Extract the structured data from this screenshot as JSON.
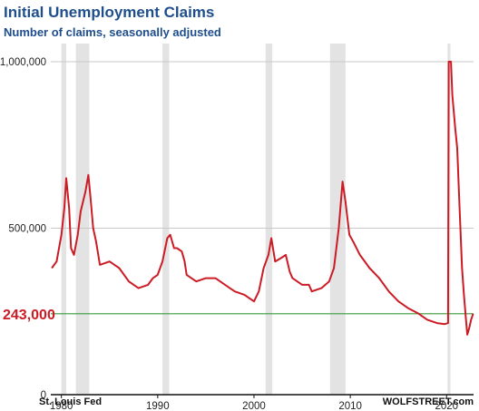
{
  "chart_data": {
    "type": "line",
    "title": "Initial Unemployment Claims",
    "subtitle": "Number of claims, seasonally adjusted",
    "source": "St. Louis Fed",
    "brand": "WOLFSTREET.com",
    "ylim": [
      0,
      1000000
    ],
    "xlim": [
      1978.9,
      2022.8
    ],
    "y_ticks": [
      {
        "value": 0,
        "label": "0"
      },
      {
        "value": 500000,
        "label": "500,000"
      },
      {
        "value": 1000000,
        "label": "1,000,000"
      }
    ],
    "x_ticks": [
      {
        "value": 1980,
        "label": "1980"
      },
      {
        "value": 1990,
        "label": "1990"
      },
      {
        "value": 2000,
        "label": "2000"
      },
      {
        "value": 2010,
        "label": "2010"
      },
      {
        "value": 2020,
        "label": "2020"
      }
    ],
    "reference_line": {
      "value": 243000,
      "label": "243,000",
      "color": "#3a9a3a"
    },
    "recessions": [
      {
        "start": 1980.0,
        "end": 1980.5
      },
      {
        "start": 1981.5,
        "end": 1982.9
      },
      {
        "start": 1990.5,
        "end": 1991.2
      },
      {
        "start": 2001.2,
        "end": 2001.9
      },
      {
        "start": 2007.9,
        "end": 2009.5
      },
      {
        "start": 2020.1,
        "end": 2020.4
      }
    ],
    "series": [
      {
        "color": "#cc1b24",
        "points": [
          [
            1979.0,
            380000
          ],
          [
            1979.5,
            400000
          ],
          [
            1980.0,
            480000
          ],
          [
            1980.3,
            560000
          ],
          [
            1980.5,
            650000
          ],
          [
            1980.8,
            560000
          ],
          [
            1981.0,
            440000
          ],
          [
            1981.3,
            420000
          ],
          [
            1981.7,
            480000
          ],
          [
            1982.0,
            550000
          ],
          [
            1982.5,
            610000
          ],
          [
            1982.8,
            660000
          ],
          [
            1983.0,
            600000
          ],
          [
            1983.3,
            500000
          ],
          [
            1983.6,
            460000
          ],
          [
            1984.0,
            390000
          ],
          [
            1985.0,
            400000
          ],
          [
            1986.0,
            380000
          ],
          [
            1987.0,
            340000
          ],
          [
            1988.0,
            320000
          ],
          [
            1989.0,
            330000
          ],
          [
            1989.5,
            350000
          ],
          [
            1990.0,
            360000
          ],
          [
            1990.5,
            400000
          ],
          [
            1991.0,
            470000
          ],
          [
            1991.3,
            480000
          ],
          [
            1991.7,
            440000
          ],
          [
            1992.0,
            440000
          ],
          [
            1992.5,
            430000
          ],
          [
            1992.8,
            400000
          ],
          [
            1993.0,
            360000
          ],
          [
            1994.0,
            340000
          ],
          [
            1995.0,
            350000
          ],
          [
            1996.0,
            350000
          ],
          [
            1997.0,
            330000
          ],
          [
            1998.0,
            310000
          ],
          [
            1999.0,
            300000
          ],
          [
            2000.0,
            280000
          ],
          [
            2000.5,
            310000
          ],
          [
            2001.0,
            380000
          ],
          [
            2001.5,
            420000
          ],
          [
            2001.8,
            470000
          ],
          [
            2002.2,
            400000
          ],
          [
            2002.8,
            410000
          ],
          [
            2003.3,
            420000
          ],
          [
            2003.7,
            370000
          ],
          [
            2004.0,
            350000
          ],
          [
            2005.0,
            330000
          ],
          [
            2005.7,
            330000
          ],
          [
            2006.0,
            310000
          ],
          [
            2007.0,
            320000
          ],
          [
            2007.8,
            340000
          ],
          [
            2008.3,
            380000
          ],
          [
            2008.8,
            500000
          ],
          [
            2009.2,
            640000
          ],
          [
            2009.5,
            580000
          ],
          [
            2009.9,
            480000
          ],
          [
            2010.3,
            460000
          ],
          [
            2011.0,
            420000
          ],
          [
            2012.0,
            380000
          ],
          [
            2013.0,
            350000
          ],
          [
            2014.0,
            310000
          ],
          [
            2015.0,
            280000
          ],
          [
            2016.0,
            260000
          ],
          [
            2017.0,
            245000
          ],
          [
            2018.0,
            225000
          ],
          [
            2019.0,
            215000
          ],
          [
            2019.8,
            212000
          ],
          [
            2020.15,
            215000
          ],
          [
            2020.22,
            1000000
          ],
          [
            2020.3,
            1000000
          ],
          [
            2020.45,
            1000000
          ],
          [
            2020.6,
            900000
          ],
          [
            2020.9,
            800000
          ],
          [
            2021.1,
            740000
          ],
          [
            2021.35,
            560000
          ],
          [
            2021.6,
            380000
          ],
          [
            2021.8,
            300000
          ],
          [
            2022.0,
            230000
          ],
          [
            2022.15,
            180000
          ],
          [
            2022.35,
            200000
          ],
          [
            2022.55,
            225000
          ],
          [
            2022.75,
            243000
          ]
        ]
      }
    ]
  }
}
